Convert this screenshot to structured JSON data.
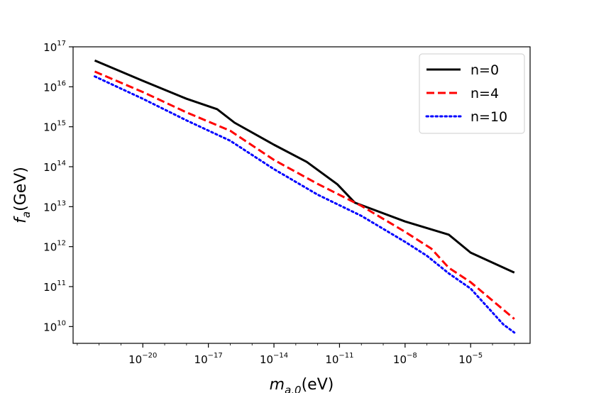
{
  "chart_data": {
    "type": "line",
    "title": "",
    "xlabel": "m_{a,0}(eV)",
    "ylabel": "f_a(GeV)",
    "xscale": "log",
    "yscale": "log",
    "xlim": [
      -23.19,
      -2.28
    ],
    "ylim": [
      9.58,
      17.0
    ],
    "grid": false,
    "legend_position": "top-right",
    "x_ticks": [
      {
        "exp": -20,
        "base": "10",
        "power": "−20"
      },
      {
        "exp": -17,
        "base": "10",
        "power": "−17"
      },
      {
        "exp": -14,
        "base": "10",
        "power": "−14"
      },
      {
        "exp": -11,
        "base": "10",
        "power": "−11"
      },
      {
        "exp": -8,
        "base": "10",
        "power": "−8"
      },
      {
        "exp": -5,
        "base": "10",
        "power": "−5"
      }
    ],
    "y_ticks": [
      {
        "exp": 10,
        "base": "10",
        "power": "10"
      },
      {
        "exp": 11,
        "base": "10",
        "power": "11"
      },
      {
        "exp": 12,
        "base": "10",
        "power": "12"
      },
      {
        "exp": 13,
        "base": "10",
        "power": "13"
      },
      {
        "exp": 14,
        "base": "10",
        "power": "14"
      },
      {
        "exp": 15,
        "base": "10",
        "power": "15"
      },
      {
        "exp": 16,
        "base": "10",
        "power": "16"
      },
      {
        "exp": 17,
        "base": "10",
        "power": "17"
      }
    ],
    "series": [
      {
        "name": "n=0",
        "color": "#000000",
        "style": "solid",
        "points": [
          [
            -22.2,
            16.66
          ],
          [
            -20.0,
            16.15
          ],
          [
            -18.0,
            15.7
          ],
          [
            -16.6,
            15.44
          ],
          [
            -15.8,
            15.1
          ],
          [
            -14.0,
            14.55
          ],
          [
            -12.5,
            14.12
          ],
          [
            -11.1,
            13.56
          ],
          [
            -10.3,
            13.1
          ],
          [
            -8.0,
            12.63
          ],
          [
            -6.0,
            12.3
          ],
          [
            -5.0,
            11.85
          ],
          [
            -3.0,
            11.35
          ]
        ]
      },
      {
        "name": "n=4",
        "color": "#ff0000",
        "style": "dashed",
        "points": [
          [
            -22.2,
            16.38
          ],
          [
            -20.0,
            15.87
          ],
          [
            -18.0,
            15.36
          ],
          [
            -16.0,
            14.9
          ],
          [
            -14.0,
            14.17
          ],
          [
            -12.0,
            13.57
          ],
          [
            -10.0,
            13.02
          ],
          [
            -8.0,
            12.37
          ],
          [
            -6.8,
            11.95
          ],
          [
            -6.0,
            11.47
          ],
          [
            -5.0,
            11.11
          ],
          [
            -3.0,
            10.19
          ]
        ]
      },
      {
        "name": "n=10",
        "color": "#0000ff",
        "style": "dotted",
        "points": [
          [
            -22.2,
            16.26
          ],
          [
            -20.0,
            15.7
          ],
          [
            -18.0,
            15.16
          ],
          [
            -16.0,
            14.65
          ],
          [
            -14.0,
            13.94
          ],
          [
            -12.0,
            13.3
          ],
          [
            -10.0,
            12.77
          ],
          [
            -8.0,
            12.12
          ],
          [
            -7.0,
            11.77
          ],
          [
            -6.0,
            11.33
          ],
          [
            -5.0,
            10.95
          ],
          [
            -3.5,
            10.05
          ],
          [
            -3.0,
            9.85
          ]
        ]
      }
    ]
  }
}
